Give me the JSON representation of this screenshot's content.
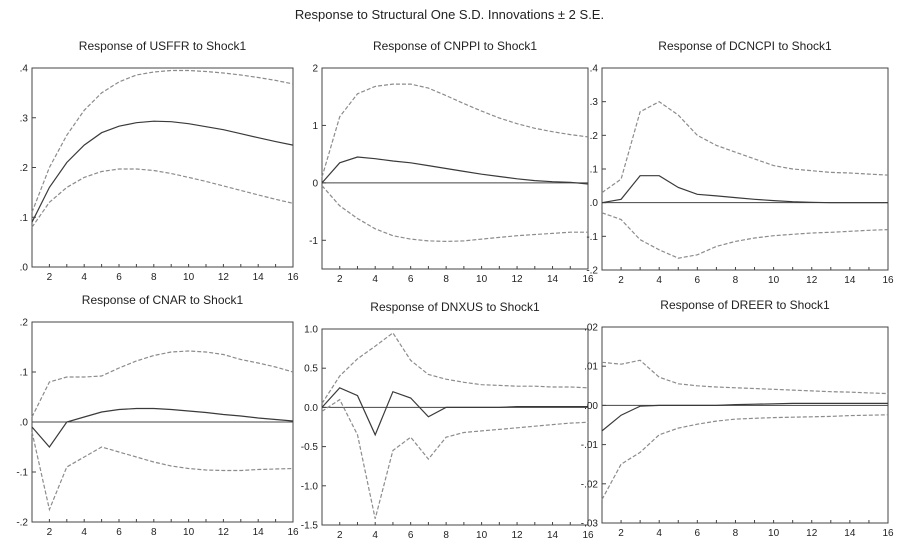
{
  "title": "Response to Structural One S.D. Innovations ± 2 S.E.",
  "chart_data": [
    {
      "type": "line",
      "title": "Response of USFFR to Shock1",
      "x": [
        1,
        2,
        3,
        4,
        5,
        6,
        7,
        8,
        9,
        10,
        11,
        12,
        13,
        14,
        15,
        16
      ],
      "xticks": [
        "2",
        "4",
        "6",
        "8",
        "10",
        "12",
        "14",
        "16"
      ],
      "xtick_values": [
        2,
        4,
        6,
        8,
        10,
        12,
        14,
        16
      ],
      "yticks": [
        ".0",
        ".1",
        ".2",
        ".3",
        ".4"
      ],
      "ytick_values": [
        0,
        0.1,
        0.2,
        0.3,
        0.4
      ],
      "ylim": [
        0,
        0.4
      ],
      "series": [
        {
          "role": "response",
          "values": [
            0.09,
            0.16,
            0.21,
            0.245,
            0.27,
            0.283,
            0.29,
            0.293,
            0.292,
            0.288,
            0.282,
            0.276,
            0.268,
            0.26,
            0.252,
            0.245
          ]
        },
        {
          "role": "upper",
          "values": [
            0.11,
            0.2,
            0.265,
            0.315,
            0.35,
            0.372,
            0.386,
            0.392,
            0.395,
            0.395,
            0.393,
            0.39,
            0.386,
            0.381,
            0.375,
            0.368
          ]
        },
        {
          "role": "lower",
          "values": [
            0.08,
            0.13,
            0.16,
            0.18,
            0.192,
            0.197,
            0.197,
            0.194,
            0.188,
            0.18,
            0.172,
            0.163,
            0.154,
            0.145,
            0.136,
            0.128
          ]
        }
      ],
      "zero_line": false
    },
    {
      "type": "line",
      "title": "Response of CNPPI to Shock1",
      "x": [
        1,
        2,
        3,
        4,
        5,
        6,
        7,
        8,
        9,
        10,
        11,
        12,
        13,
        14,
        15,
        16
      ],
      "xticks": [
        "2",
        "4",
        "6",
        "8",
        "10",
        "12",
        "14",
        "16"
      ],
      "xtick_values": [
        2,
        4,
        6,
        8,
        10,
        12,
        14,
        16
      ],
      "yticks": [
        "-1",
        "0",
        "1",
        "2"
      ],
      "ytick_values": [
        -1,
        0,
        1,
        2
      ],
      "ylim": [
        -1.5,
        2
      ],
      "series": [
        {
          "role": "response",
          "values": [
            0,
            0.35,
            0.45,
            0.42,
            0.38,
            0.35,
            0.3,
            0.25,
            0.2,
            0.15,
            0.11,
            0.07,
            0.04,
            0.02,
            0.01,
            -0.02
          ]
        },
        {
          "role": "upper",
          "values": [
            0.1,
            1.15,
            1.55,
            1.68,
            1.72,
            1.72,
            1.65,
            1.52,
            1.38,
            1.25,
            1.13,
            1.03,
            0.95,
            0.89,
            0.84,
            0.8
          ]
        },
        {
          "role": "lower",
          "values": [
            -0.05,
            -0.4,
            -0.62,
            -0.8,
            -0.92,
            -0.98,
            -1.01,
            -1.02,
            -1.01,
            -0.98,
            -0.95,
            -0.92,
            -0.9,
            -0.88,
            -0.86,
            -0.86
          ]
        }
      ],
      "zero_line": true
    },
    {
      "type": "line",
      "title": "Response of DCNCPI to Shock1",
      "x": [
        1,
        2,
        3,
        4,
        5,
        6,
        7,
        8,
        9,
        10,
        11,
        12,
        13,
        14,
        15,
        16
      ],
      "xticks": [
        "2",
        "4",
        "6",
        "8",
        "10",
        "12",
        "14",
        "16"
      ],
      "xtick_values": [
        2,
        4,
        6,
        8,
        10,
        12,
        14,
        16
      ],
      "yticks": [
        "-.2",
        "-.1",
        ".0",
        ".1",
        ".2",
        ".3",
        ".4"
      ],
      "ytick_values": [
        -0.2,
        -0.1,
        0,
        0.1,
        0.2,
        0.3,
        0.4
      ],
      "ylim": [
        -0.2,
        0.4
      ],
      "series": [
        {
          "role": "response",
          "values": [
            0,
            0.01,
            0.08,
            0.08,
            0.045,
            0.025,
            0.02,
            0.015,
            0.01,
            0.006,
            0.003,
            0.001,
            0,
            0,
            0,
            0
          ]
        },
        {
          "role": "upper",
          "values": [
            0.03,
            0.07,
            0.27,
            0.3,
            0.26,
            0.2,
            0.17,
            0.15,
            0.13,
            0.11,
            0.1,
            0.095,
            0.09,
            0.088,
            0.085,
            0.082
          ]
        },
        {
          "role": "lower",
          "values": [
            -0.03,
            -0.05,
            -0.11,
            -0.14,
            -0.165,
            -0.155,
            -0.13,
            -0.115,
            -0.105,
            -0.098,
            -0.094,
            -0.09,
            -0.088,
            -0.085,
            -0.082,
            -0.08
          ]
        }
      ],
      "zero_line": true
    },
    {
      "type": "line",
      "title": "Response of CNAR to Shock1",
      "x": [
        1,
        2,
        3,
        4,
        5,
        6,
        7,
        8,
        9,
        10,
        11,
        12,
        13,
        14,
        15,
        16
      ],
      "xticks": [
        "2",
        "4",
        "6",
        "8",
        "10",
        "12",
        "14",
        "16"
      ],
      "xtick_values": [
        2,
        4,
        6,
        8,
        10,
        12,
        14,
        16
      ],
      "yticks": [
        "-.2",
        "-.1",
        ".0",
        ".1",
        ".2"
      ],
      "ytick_values": [
        -0.2,
        -0.1,
        0,
        0.1,
        0.2
      ],
      "ylim": [
        -0.2,
        0.2
      ],
      "series": [
        {
          "role": "response",
          "values": [
            -0.01,
            -0.05,
            0,
            0.01,
            0.02,
            0.025,
            0.027,
            0.027,
            0.025,
            0.022,
            0.019,
            0.015,
            0.012,
            0.008,
            0.005,
            0.002
          ]
        },
        {
          "role": "upper",
          "values": [
            0.01,
            0.08,
            0.09,
            0.09,
            0.092,
            0.108,
            0.122,
            0.133,
            0.14,
            0.142,
            0.14,
            0.135,
            0.125,
            0.118,
            0.11,
            0.1
          ]
        },
        {
          "role": "lower",
          "values": [
            -0.02,
            -0.175,
            -0.09,
            -0.07,
            -0.05,
            -0.06,
            -0.07,
            -0.08,
            -0.088,
            -0.093,
            -0.096,
            -0.097,
            -0.097,
            -0.095,
            -0.094,
            -0.093
          ]
        }
      ],
      "zero_line": true
    },
    {
      "type": "line",
      "title": "Response of DNXUS to Shock1",
      "x": [
        1,
        2,
        3,
        4,
        5,
        6,
        7,
        8,
        9,
        10,
        11,
        12,
        13,
        14,
        15,
        16
      ],
      "xticks": [
        "2",
        "4",
        "6",
        "8",
        "10",
        "12",
        "14",
        "16"
      ],
      "xtick_values": [
        2,
        4,
        6,
        8,
        10,
        12,
        14,
        16
      ],
      "yticks": [
        "-1.5",
        "-1.0",
        "-0.5",
        "0.0",
        "0.5",
        "1.0"
      ],
      "ytick_values": [
        -1.5,
        -1,
        -0.5,
        0,
        0.5,
        1
      ],
      "ylim": [
        -1.5,
        1
      ],
      "series": [
        {
          "role": "response",
          "values": [
            0,
            0.25,
            0.15,
            -0.35,
            0.2,
            0.12,
            -0.12,
            0,
            0,
            0,
            0,
            0.01,
            0.01,
            0.01,
            0.01,
            0.01
          ]
        },
        {
          "role": "upper",
          "values": [
            0.05,
            0.4,
            0.62,
            0.78,
            0.95,
            0.6,
            0.42,
            0.36,
            0.32,
            0.29,
            0.28,
            0.27,
            0.27,
            0.26,
            0.26,
            0.25
          ]
        },
        {
          "role": "lower",
          "values": [
            -0.05,
            0.1,
            -0.35,
            -1.42,
            -0.55,
            -0.38,
            -0.66,
            -0.38,
            -0.32,
            -0.3,
            -0.28,
            -0.26,
            -0.24,
            -0.22,
            -0.2,
            -0.19
          ]
        }
      ],
      "zero_line": true
    },
    {
      "type": "line",
      "title": "Response of DREER to Shock1",
      "x": [
        1,
        2,
        3,
        4,
        5,
        6,
        7,
        8,
        9,
        10,
        11,
        12,
        13,
        14,
        15,
        16
      ],
      "xticks": [
        "2",
        "4",
        "6",
        "8",
        "10",
        "12",
        "14",
        "16"
      ],
      "xtick_values": [
        2,
        4,
        6,
        8,
        10,
        12,
        14,
        16
      ],
      "yticks": [
        "-.03",
        "-.02",
        "-.01",
        ".00",
        ".01",
        ".02"
      ],
      "ytick_values": [
        -0.03,
        -0.02,
        -0.01,
        0,
        0.01,
        0.02
      ],
      "ylim": [
        -0.03,
        0.02
      ],
      "series": [
        {
          "role": "response",
          "values": [
            -0.0065,
            -0.0025,
            -0.0002,
            0,
            0,
            0,
            0,
            0.0002,
            0.0003,
            0.0004,
            0.0005,
            0.0005,
            0.0005,
            0.0005,
            0.0005,
            0.0005
          ]
        },
        {
          "role": "upper",
          "values": [
            0.011,
            0.0105,
            0.0115,
            0.0072,
            0.0055,
            0.005,
            0.0047,
            0.0045,
            0.0043,
            0.0041,
            0.0039,
            0.0037,
            0.0035,
            0.0034,
            0.0032,
            0.003
          ]
        },
        {
          "role": "lower",
          "values": [
            -0.024,
            -0.015,
            -0.012,
            -0.0075,
            -0.0058,
            -0.0048,
            -0.004,
            -0.0035,
            -0.0033,
            -0.0031,
            -0.003,
            -0.0029,
            -0.0028,
            -0.0026,
            -0.0025,
            -0.0024
          ]
        }
      ],
      "zero_line": true
    }
  ],
  "colors": {
    "response": "#3a3a3a",
    "band": "#8c8c8c",
    "axis": "#444444",
    "zero": "#444444"
  }
}
